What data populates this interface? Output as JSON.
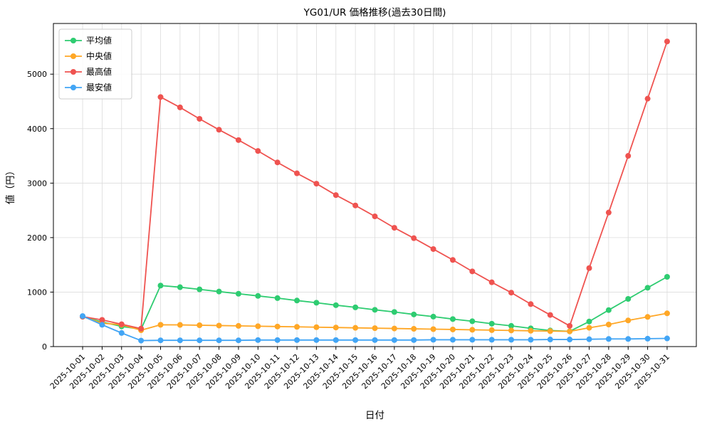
{
  "chart_data": {
    "type": "line",
    "title": "YG01/UR 価格推移(過去30日間)",
    "xlabel": "日付",
    "ylabel": "値（円）",
    "x": [
      "2025-10-01",
      "2025-10-02",
      "2025-10-03",
      "2025-10-04",
      "2025-10-05",
      "2025-10-06",
      "2025-10-07",
      "2025-10-08",
      "2025-10-09",
      "2025-10-10",
      "2025-10-11",
      "2025-10-12",
      "2025-10-13",
      "2025-10-14",
      "2025-10-15",
      "2025-10-16",
      "2025-10-17",
      "2025-10-18",
      "2025-10-19",
      "2025-10-20",
      "2025-10-21",
      "2025-10-22",
      "2025-10-23",
      "2025-10-24",
      "2025-10-25",
      "2025-10-26",
      "2025-10-27",
      "2025-10-28",
      "2025-10-29",
      "2025-10-30",
      "2025-10-31"
    ],
    "series": [
      {
        "id": "average",
        "name": "平均値",
        "color": "#2ecc71",
        "values": [
          550,
          450,
          370,
          320,
          1120,
          1090,
          1050,
          1010,
          970,
          930,
          890,
          845,
          805,
          760,
          720,
          675,
          635,
          590,
          550,
          505,
          465,
          420,
          380,
          335,
          295,
          280,
          460,
          670,
          875,
          1080,
          1280
        ]
      },
      {
        "id": "median",
        "name": "中央値",
        "color": "#ffa726",
        "values": [
          550,
          430,
          400,
          300,
          400,
          398,
          392,
          386,
          380,
          374,
          368,
          362,
          356,
          350,
          344,
          338,
          332,
          326,
          320,
          314,
          308,
          302,
          296,
          290,
          284,
          280,
          345,
          405,
          480,
          545,
          610
        ]
      },
      {
        "id": "max",
        "name": "最高値",
        "color": "#ef5350",
        "values": [
          550,
          490,
          410,
          330,
          4580,
          4390,
          4180,
          3980,
          3790,
          3590,
          3380,
          3180,
          2990,
          2780,
          2590,
          2390,
          2180,
          1990,
          1790,
          1590,
          1380,
          1180,
          990,
          780,
          580,
          380,
          1440,
          2460,
          3500,
          4550,
          5600
        ]
      },
      {
        "id": "min",
        "name": "最安値",
        "color": "#42a5f5",
        "values": [
          560,
          400,
          250,
          110,
          115,
          115,
          115,
          115,
          115,
          120,
          120,
          120,
          120,
          120,
          120,
          120,
          120,
          120,
          125,
          125,
          125,
          125,
          125,
          125,
          130,
          130,
          135,
          140,
          140,
          145,
          150
        ]
      }
    ],
    "ylim": [
      0,
      5930
    ],
    "yticks": [
      0,
      1000,
      2000,
      3000,
      4000,
      5000
    ],
    "grid": true,
    "grid_color": "#dcdcdc",
    "axis_color": "#000000",
    "legend_position": "upper-left"
  }
}
